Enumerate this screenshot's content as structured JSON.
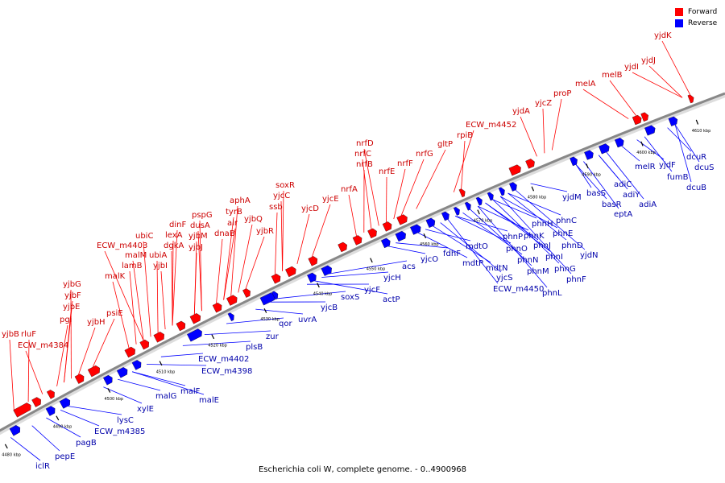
{
  "caption": "Escherichia coli W, complete genome. - 0..4900968",
  "legend": [
    {
      "label": "Forward",
      "color": "#ff0000"
    },
    {
      "label": "Reverse",
      "color": "#0000ff"
    }
  ],
  "colors": {
    "forward": "#ff0000",
    "reverse": "#0000ff",
    "backbone": "#888888",
    "text_fwd": "#cc0000",
    "text_rev": "#0000aa"
  },
  "ticks": [
    "4480 kbp",
    "4490 kbp",
    "4500 kbp",
    "4510 kbp",
    "4520 kbp",
    "4530 kbp",
    "4540 kbp",
    "4550 kbp",
    "4560 kbp",
    "4570 kbp",
    "4580 kbp",
    "4590 kbp",
    "4600 kbp",
    "4610 kbp"
  ],
  "forward_genes": [
    "yjbB",
    "rluF",
    "ECW_m4384",
    "pgi",
    "yjbE",
    "yjbF",
    "yjbG",
    "yjbH",
    "psiE",
    "malK",
    "lamB",
    "malM",
    "ubiC",
    "ECW_m4403",
    "ubiA",
    "yjbI",
    "dgkA",
    "lexA",
    "dinF",
    "yjbJ",
    "yjbM",
    "dusA",
    "pspG",
    "dnaB",
    "alr",
    "tyrB",
    "aphA",
    "yjbQ",
    "yjbR",
    "ssb",
    "yjcC",
    "soxR",
    "yjcD",
    "yjcE",
    "nrfA",
    "nrfB",
    "nrfC",
    "nrfD",
    "nrfE",
    "nrfF",
    "nrfG",
    "gltP",
    "rpiB",
    "ECW_m4452",
    "yjdA",
    "yjcZ",
    "proP",
    "melA",
    "melB",
    "yjdI",
    "yjdJ",
    "yjdK"
  ],
  "reverse_genes": [
    "iclR",
    "pepE",
    "pagB",
    "ECW_m4385",
    "lysC",
    "xylE",
    "malG",
    "malF",
    "malE",
    "ECW_m4398",
    "ECW_m4402",
    "plsB",
    "zur",
    "qor",
    "uvrA",
    "yjcB",
    "soxS",
    "yjcF",
    "actP",
    "yjcH",
    "acs",
    "yjcO",
    "fdhF",
    "mdtP",
    "mdtO",
    "mdtN",
    "yjcS",
    "ECW_m4450",
    "phnP",
    "phnO",
    "phnN",
    "phnM",
    "phnL",
    "phnK",
    "phnJ",
    "phnI",
    "phnH",
    "phnG",
    "phnF",
    "phnE",
    "phnD",
    "phnC",
    "yjdN",
    "yjdM",
    "basS",
    "basR",
    "eptA",
    "adiC",
    "adiY",
    "adiA",
    "melR",
    "yjdF",
    "fumB",
    "dcuR",
    "dcuS",
    "dcuB"
  ]
}
